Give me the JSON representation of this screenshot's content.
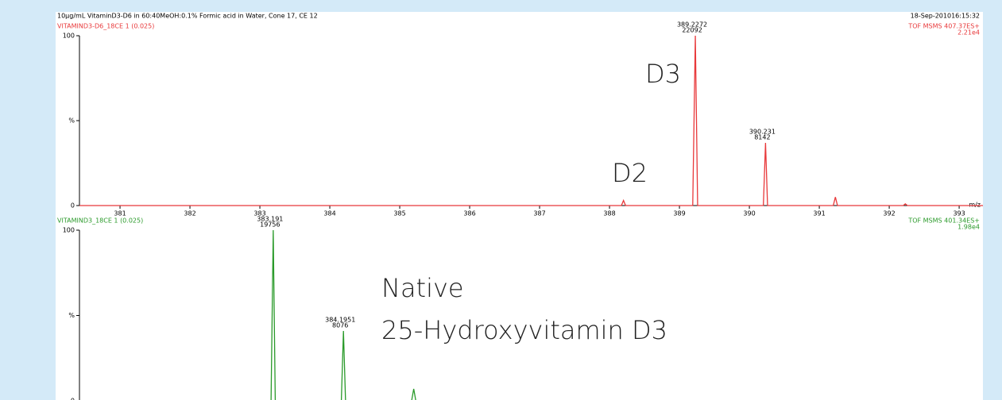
{
  "header": {
    "description": "10µg/mL VitaminD3-D6 in 60:40MeOH:0.1% Formic acid in Water, Cone 17, CE 12",
    "timestamp": "18-Sep-201016:15:32"
  },
  "chart_data": [
    {
      "type": "line",
      "title": "VITAMIND3-D6_18CE 1 (0.025)",
      "function": "TOF MSMS 407.37ES+",
      "scale": "2.21e4",
      "color": "#e8383a",
      "x_label": "m/z",
      "xlim": [
        380.42,
        393.34
      ],
      "xticks": [
        381,
        382,
        383,
        384,
        385,
        386,
        387,
        388,
        389,
        390,
        391,
        392,
        393
      ],
      "ylim": [
        0,
        100
      ],
      "yticks": [
        0,
        {
          "value": 50,
          "label": "%"
        },
        100
      ],
      "x": [
        380.42,
        388.17,
        388.2,
        388.23,
        389.19,
        389.2272,
        389.26,
        390.2,
        390.231,
        390.26,
        391.2,
        391.23,
        391.26,
        392.2,
        392.23,
        392.26,
        393.34
      ],
      "series": [
        {
          "name": "VITAMIND3-D6",
          "values": [
            0,
            0,
            3,
            0,
            0,
            100,
            0,
            0,
            36.9,
            0,
            0,
            5,
            0,
            0,
            1,
            0,
            0
          ]
        }
      ],
      "peak_labels": [
        {
          "x": 389.2272,
          "count": 22092
        },
        {
          "x": 390.231,
          "count": 8142
        }
      ],
      "callouts": [
        "D3",
        "D2"
      ]
    },
    {
      "type": "line",
      "title": "VITAMIND3_18CE 1 (0.025)",
      "function": "TOF MSMS 401.34ES+",
      "scale": "1.98e4",
      "color": "#2a9a2a",
      "xlim": [
        380.42,
        393.34
      ],
      "ylim": [
        0,
        100
      ],
      "yticks": [
        0,
        {
          "value": 50,
          "label": "%"
        },
        100
      ],
      "x": [
        380.42,
        383.16,
        383.191,
        383.22,
        384.165,
        384.1951,
        384.225,
        385.17,
        385.2,
        385.23,
        393.34
      ],
      "series": [
        {
          "name": "VITAMIND3",
          "values": [
            0,
            0,
            100,
            0,
            0,
            40.9,
            0,
            0,
            7,
            0,
            0
          ]
        }
      ],
      "peak_labels": [
        {
          "x": 383.191,
          "count": 19756
        },
        {
          "x": 384.1951,
          "count": 8076
        }
      ],
      "callouts": [
        "Native",
        "25-Hydroxyvitamin D3"
      ]
    }
  ]
}
